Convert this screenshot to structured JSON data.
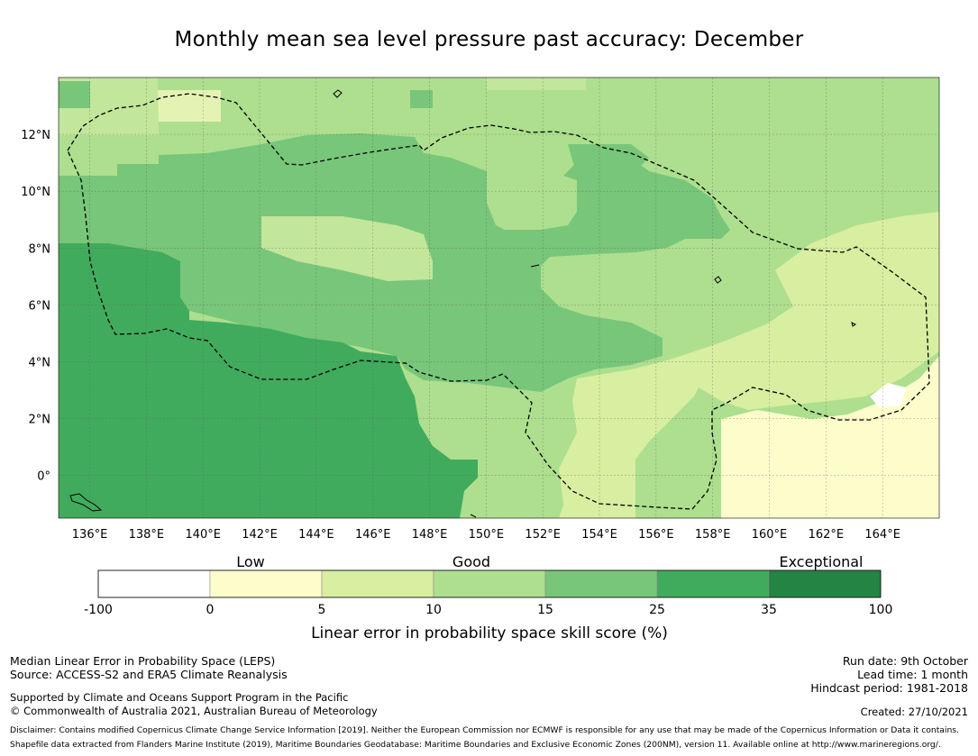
{
  "title": "Monthly mean sea level pressure past accuracy: December",
  "map": {
    "lon_ticks": [
      "136°E",
      "138°E",
      "140°E",
      "142°E",
      "144°E",
      "146°E",
      "148°E",
      "150°E",
      "152°E",
      "154°E",
      "156°E",
      "158°E",
      "160°E",
      "162°E",
      "164°E"
    ],
    "lat_ticks": [
      "12°N",
      "10°N",
      "8°N",
      "6°N",
      "4°N",
      "2°N",
      "0°"
    ],
    "lon_range": [
      134.9,
      166.0
    ],
    "lat_range": [
      -1.5,
      14.0
    ],
    "regions": [
      {
        "name": "west-low-skill",
        "category": "25-35"
      },
      {
        "name": "central-good",
        "category": "15-25"
      },
      {
        "name": "north-band",
        "category": "10-15"
      },
      {
        "name": "east-modest",
        "category": "5-10"
      },
      {
        "name": "southeast-low",
        "category": "0-5"
      }
    ]
  },
  "colorbar": {
    "categories": [
      "Low",
      "Good",
      "Exceptional"
    ],
    "ticks": [
      "-100",
      "0",
      "5",
      "10",
      "15",
      "25",
      "35",
      "100"
    ],
    "colors": [
      "#ffffff",
      "#fdfdcc",
      "#d8eea0",
      "#addf8e",
      "#78c679",
      "#41ab5d",
      "#238443"
    ],
    "label": "Linear error in probability space skill score (%)"
  },
  "footer": {
    "left": [
      "Median Linear Error in Probability Space (LEPS)",
      "Source: ACCESS-S2 and ERA5 Climate Reanalysis"
    ],
    "support": [
      "Supported by Climate and Oceans Support Program in the Pacific",
      "© Commonwealth of Australia 2021, Australian Bureau of Meteorology"
    ],
    "right": [
      "Run date: 9th October",
      "Lead time: 1 month",
      "Hindcast period: 1981-2018"
    ],
    "created": "Created: 27/10/2021",
    "disclaimer": [
      "Disclaimer: Contains modified Copernicus Climate Change Service Information [2019]. Neither the European Commission nor ECMWF is responsible for any use that may be made of the Copernicus Information or Data it contains.",
      "Shapefile data extracted from Flanders Marine Institute (2019), Maritime Boundaries Geodatabase: Maritime Boundaries and Exclusive Economic Zones (200NM), version 11. Available online at http://www.marineregions.org/."
    ]
  }
}
